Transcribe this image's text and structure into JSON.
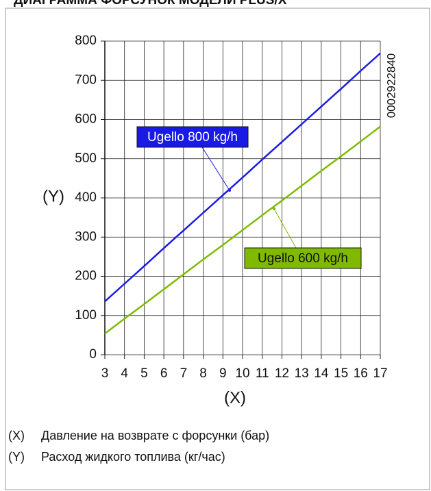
{
  "chart_data": {
    "type": "line",
    "title": "ДИАГРАММА ФОРСУНОК МОДЕЛИ PLUS/X",
    "code": "0002922840",
    "xlabel": "(X)",
    "ylabel": "(Y)",
    "notes": [
      {
        "key": "(X)",
        "text": "Давление на возврате с форсунки (бар)"
      },
      {
        "key": "(Y)",
        "text": "Расход жидкого топлива (кг/час)"
      }
    ],
    "x": [
      3,
      4,
      5,
      6,
      7,
      8,
      9,
      10,
      11,
      12,
      13,
      14,
      15,
      16,
      17
    ],
    "series": [
      {
        "name": "Ugello 800 kg/h",
        "color": "#1a1ae6",
        "values": [
          136,
          181,
          226,
          272,
          317,
          362,
          407,
          452,
          498,
          543,
          588,
          633,
          678,
          724,
          769
        ]
      },
      {
        "name": "Ugello 600 kg/h",
        "color": "#7fba00",
        "values": [
          54,
          92,
          129,
          167,
          205,
          243,
          280,
          318,
          356,
          393,
          431,
          469,
          506,
          544,
          582
        ]
      }
    ],
    "xlim": [
      3,
      17
    ],
    "xticks": [
      3,
      4,
      5,
      6,
      7,
      8,
      9,
      10,
      11,
      12,
      13,
      14,
      15,
      16,
      17
    ],
    "ylim": [
      0,
      800
    ],
    "yticks": [
      0,
      100,
      200,
      300,
      400,
      500,
      600,
      700,
      800
    ],
    "grid": true
  }
}
